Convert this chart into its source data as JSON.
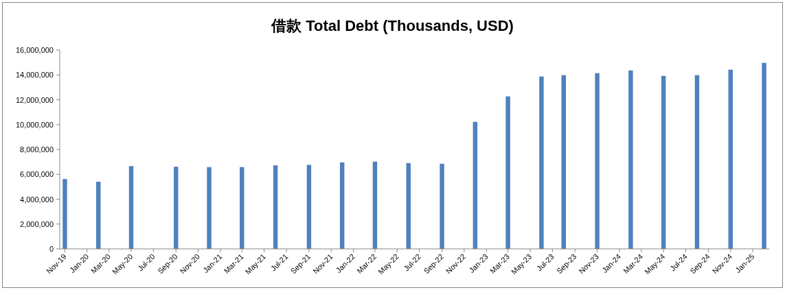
{
  "chart_data": {
    "type": "bar",
    "title": "借款 Total Debt (Thousands, USD)",
    "color": "#4f81bd",
    "x": [
      "2019-11-15",
      "2020-02-15",
      "2020-05-15",
      "2020-09-15",
      "2020-12-15",
      "2021-03-15",
      "2021-06-15",
      "2021-09-15",
      "2021-12-15",
      "2022-03-15",
      "2022-06-15",
      "2022-09-15",
      "2022-12-15",
      "2023-03-15",
      "2023-06-15",
      "2023-08-15",
      "2023-11-15",
      "2024-02-15",
      "2024-05-15",
      "2024-08-15",
      "2024-11-15",
      "2025-02-15"
    ],
    "values": [
      5620000,
      5400000,
      6660000,
      6610000,
      6580000,
      6580000,
      6720000,
      6760000,
      6960000,
      7020000,
      6900000,
      6850000,
      10220000,
      12270000,
      13870000,
      13980000,
      14140000,
      14360000,
      13920000,
      13980000,
      14420000,
      14970000
    ],
    "xlim": [
      "2019-11-01",
      "2025-03-01"
    ],
    "xticks": [
      {
        "value": "2019-11-15",
        "label": "Nov-19"
      },
      {
        "value": "2020-01-15",
        "label": "Jan-20"
      },
      {
        "value": "2020-03-15",
        "label": "Mar-20"
      },
      {
        "value": "2020-05-15",
        "label": "May-20"
      },
      {
        "value": "2020-07-15",
        "label": "Jul-20"
      },
      {
        "value": "2020-09-15",
        "label": "Sep-20"
      },
      {
        "value": "2020-11-15",
        "label": "Nov-20"
      },
      {
        "value": "2021-01-15",
        "label": "Jan-21"
      },
      {
        "value": "2021-03-15",
        "label": "Mar-21"
      },
      {
        "value": "2021-05-15",
        "label": "May-21"
      },
      {
        "value": "2021-07-15",
        "label": "Jul-21"
      },
      {
        "value": "2021-09-15",
        "label": "Sep-21"
      },
      {
        "value": "2021-11-15",
        "label": "Nov-21"
      },
      {
        "value": "2022-01-15",
        "label": "Jan-22"
      },
      {
        "value": "2022-03-15",
        "label": "Mar-22"
      },
      {
        "value": "2022-05-15",
        "label": "May-22"
      },
      {
        "value": "2022-07-15",
        "label": "Jul-22"
      },
      {
        "value": "2022-09-15",
        "label": "Sep-22"
      },
      {
        "value": "2022-11-15",
        "label": "Nov-22"
      },
      {
        "value": "2023-01-15",
        "label": "Jan-23"
      },
      {
        "value": "2023-03-15",
        "label": "Mar-23"
      },
      {
        "value": "2023-05-15",
        "label": "May-23"
      },
      {
        "value": "2023-07-15",
        "label": "Jul-23"
      },
      {
        "value": "2023-09-15",
        "label": "Sep-23"
      },
      {
        "value": "2023-11-15",
        "label": "Nov-23"
      },
      {
        "value": "2024-01-15",
        "label": "Jan-24"
      },
      {
        "value": "2024-03-15",
        "label": "Mar-24"
      },
      {
        "value": "2024-05-15",
        "label": "May-24"
      },
      {
        "value": "2024-07-15",
        "label": "Jul-24"
      },
      {
        "value": "2024-09-15",
        "label": "Sep-24"
      },
      {
        "value": "2024-11-15",
        "label": "Nov-24"
      },
      {
        "value": "2025-01-15",
        "label": "Jan-25"
      }
    ],
    "ylim": [
      0,
      16000000
    ],
    "yticks": [
      0,
      {
        "value": 2000000,
        "label": "2,000,000"
      },
      {
        "value": 4000000,
        "label": "4,000,000"
      },
      {
        "value": 6000000,
        "label": "6,000,000"
      },
      {
        "value": 8000000,
        "label": "8,000,000"
      },
      {
        "value": 10000000,
        "label": "10,000,000"
      },
      {
        "value": 12000000,
        "label": "12,000,000"
      },
      {
        "value": 14000000,
        "label": "14,000,000"
      },
      {
        "value": 16000000,
        "label": "16,000,000"
      }
    ]
  }
}
